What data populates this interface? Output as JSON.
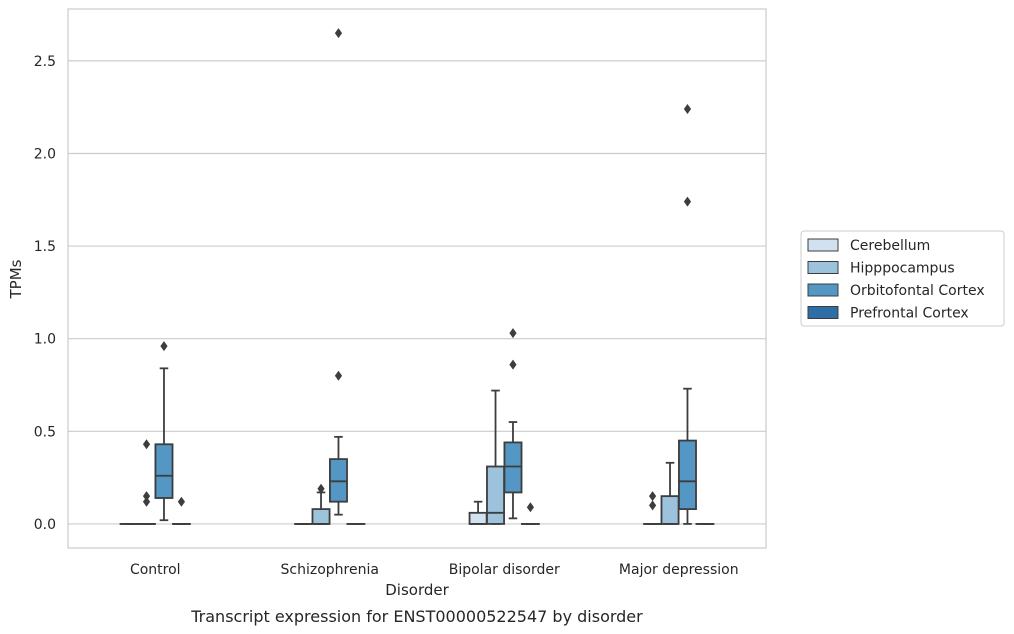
{
  "chart_data": {
    "type": "box",
    "caption": "Transcript expression for ENST00000522547 by disorder",
    "xlabel": "Disorder",
    "ylabel": "TPMs",
    "ylim": [
      -0.13,
      2.78
    ],
    "yticks": [
      "0.0",
      "0.5",
      "1.0",
      "1.5",
      "2.0",
      "2.5"
    ],
    "grid": "horizontal",
    "legend_position": "right",
    "categories": [
      "Control",
      "Schizophrenia",
      "Bipolar disorder",
      "Major depression"
    ],
    "series": [
      {
        "name": "Cerebellum",
        "color": "#d2e1ef",
        "boxes": [
          {
            "q1": 0,
            "median": 0,
            "q3": 0,
            "whisker_low": 0,
            "whisker_high": 0,
            "outliers": []
          },
          {
            "q1": 0,
            "median": 0,
            "q3": 0,
            "whisker_low": 0,
            "whisker_high": 0,
            "outliers": []
          },
          {
            "q1": 0,
            "median": 0,
            "q3": 0.06,
            "whisker_low": 0,
            "whisker_high": 0.12,
            "outliers": []
          },
          {
            "q1": 0,
            "median": 0,
            "q3": 0,
            "whisker_low": 0,
            "whisker_high": 0,
            "outliers": [
              0.1,
              0.15
            ]
          }
        ]
      },
      {
        "name": "Hipppocampus",
        "color": "#9cc2dc",
        "boxes": [
          {
            "q1": 0,
            "median": 0,
            "q3": 0,
            "whisker_low": 0,
            "whisker_high": 0,
            "outliers": [
              0.12,
              0.15,
              0.43
            ]
          },
          {
            "q1": 0,
            "median": 0,
            "q3": 0.08,
            "whisker_low": 0,
            "whisker_high": 0.17,
            "outliers": [
              0.19
            ]
          },
          {
            "q1": 0,
            "median": 0.06,
            "q3": 0.31,
            "whisker_low": 0,
            "whisker_high": 0.72,
            "outliers": []
          },
          {
            "q1": 0,
            "median": 0,
            "q3": 0.15,
            "whisker_low": 0,
            "whisker_high": 0.33,
            "outliers": []
          }
        ]
      },
      {
        "name": "Orbitofontal Cortex",
        "color": "#5496c4",
        "boxes": [
          {
            "q1": 0.14,
            "median": 0.26,
            "q3": 0.43,
            "whisker_low": 0.02,
            "whisker_high": 0.84,
            "outliers": [
              0.96
            ]
          },
          {
            "q1": 0.12,
            "median": 0.23,
            "q3": 0.35,
            "whisker_low": 0.05,
            "whisker_high": 0.47,
            "outliers": [
              0.8,
              2.65
            ]
          },
          {
            "q1": 0.17,
            "median": 0.31,
            "q3": 0.44,
            "whisker_low": 0.03,
            "whisker_high": 0.55,
            "outliers": [
              0.86,
              1.03
            ]
          },
          {
            "q1": 0.08,
            "median": 0.23,
            "q3": 0.45,
            "whisker_low": 0,
            "whisker_high": 0.73,
            "outliers": [
              1.74,
              2.24
            ]
          }
        ]
      },
      {
        "name": "Prefrontal Cortex",
        "color": "#2e6ea6",
        "boxes": [
          {
            "q1": 0,
            "median": 0,
            "q3": 0,
            "whisker_low": 0,
            "whisker_high": 0,
            "outliers": [
              0.12
            ]
          },
          {
            "q1": 0,
            "median": 0,
            "q3": 0,
            "whisker_low": 0,
            "whisker_high": 0,
            "outliers": []
          },
          {
            "q1": 0,
            "median": 0,
            "q3": 0,
            "whisker_low": 0,
            "whisker_high": 0,
            "outliers": [
              0.09
            ]
          },
          {
            "q1": 0,
            "median": 0,
            "q3": 0,
            "whisker_low": 0,
            "whisker_high": 0,
            "outliers": []
          }
        ]
      }
    ]
  }
}
